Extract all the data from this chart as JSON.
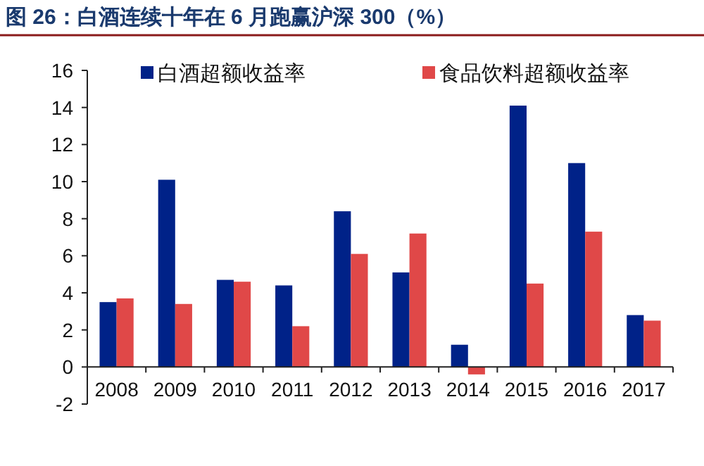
{
  "chart_data": {
    "type": "bar",
    "title": "图 26：白酒连续十年在 6 月跑赢沪深 300（%）",
    "categories": [
      "2008",
      "2009",
      "2010",
      "2011",
      "2012",
      "2013",
      "2014",
      "2015",
      "2016",
      "2017"
    ],
    "series": [
      {
        "name": "白酒超额收益率",
        "color": "#002288",
        "values": [
          3.5,
          10.1,
          4.7,
          4.4,
          8.4,
          5.1,
          1.2,
          14.1,
          11.0,
          2.8
        ]
      },
      {
        "name": "食品饮料超额收益率",
        "color": "#e04848",
        "values": [
          3.7,
          3.4,
          4.6,
          2.2,
          6.1,
          7.2,
          -0.4,
          4.5,
          7.3,
          2.5
        ]
      }
    ],
    "ylim": [
      -2,
      16
    ],
    "yticks": [
      -2,
      0,
      2,
      4,
      6,
      8,
      10,
      12,
      14,
      16
    ],
    "legend": "top",
    "grid": false
  }
}
